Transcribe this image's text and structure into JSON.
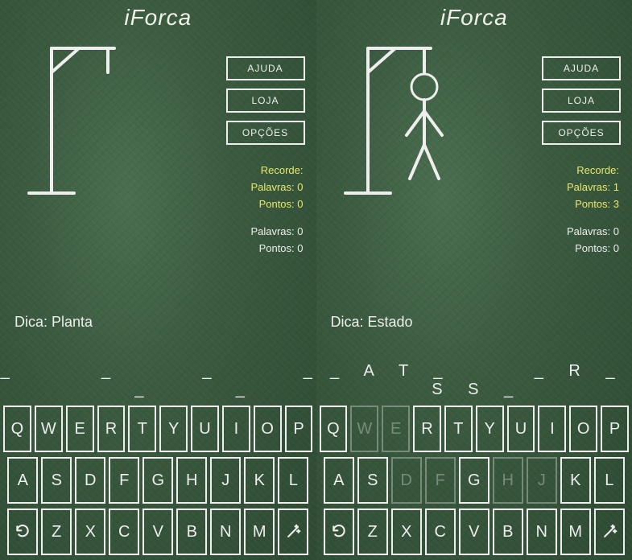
{
  "app_title": "iForca",
  "colors": {
    "chalk": "#eeeeee",
    "accent": "#e8e86a",
    "board_center": "#4a6e4f",
    "board_edge": "#2d4a32",
    "key_border": "#eeeeee"
  },
  "menu": {
    "help": "AJUDA",
    "shop": "LOJA",
    "options": "OPÇÕES"
  },
  "labels": {
    "record": "Recorde:",
    "words": "Palavras:",
    "points": "Pontos:",
    "hint": "Dica:"
  },
  "screens": [
    {
      "hangman_stage": 0,
      "record": {
        "words": 0,
        "points": 0
      },
      "current": {
        "words": 0,
        "points": 0
      },
      "hint": "Planta",
      "word_display": "_ _ _ _ _ _",
      "used_keys": []
    },
    {
      "hangman_stage": 6,
      "record": {
        "words": 1,
        "points": 3
      },
      "current": {
        "words": 0,
        "points": 0
      },
      "hint": "Estado",
      "word_display": "_AT_ _R_SS_",
      "used_keys": [
        "W",
        "E",
        "D",
        "F",
        "H",
        "J"
      ]
    }
  ],
  "keyboard": {
    "rows": [
      [
        "Q",
        "W",
        "E",
        "R",
        "T",
        "Y",
        "U",
        "I",
        "O",
        "P"
      ],
      [
        "A",
        "S",
        "D",
        "F",
        "G",
        "H",
        "J",
        "K",
        "L"
      ],
      [
        "undo",
        "Z",
        "X",
        "C",
        "V",
        "B",
        "N",
        "M",
        "magic"
      ]
    ]
  }
}
